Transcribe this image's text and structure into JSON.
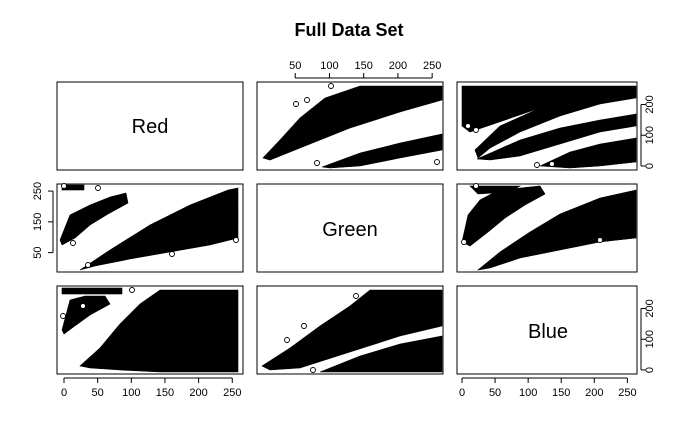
{
  "chart_data": {
    "type": "scatter",
    "title": "Full Data Set",
    "variables": [
      "Red",
      "Green",
      "Blue"
    ],
    "axis_range": [
      0,
      260
    ],
    "ticks_bottom": [
      0,
      50,
      100,
      150,
      200,
      250
    ],
    "ticks_top": [
      50,
      100,
      150,
      200,
      250
    ],
    "ticks_left": [
      50,
      150,
      250
    ],
    "ticks_right": [
      0,
      100,
      200
    ],
    "point_style": "open-circle",
    "grid": false,
    "pairs": [
      {
        "x": "Green",
        "y": "Red"
      },
      {
        "x": "Blue",
        "y": "Red"
      },
      {
        "x": "Red",
        "y": "Green"
      },
      {
        "x": "Blue",
        "y": "Green"
      },
      {
        "x": "Red",
        "y": "Blue"
      },
      {
        "x": "Green",
        "y": "Blue"
      }
    ]
  }
}
